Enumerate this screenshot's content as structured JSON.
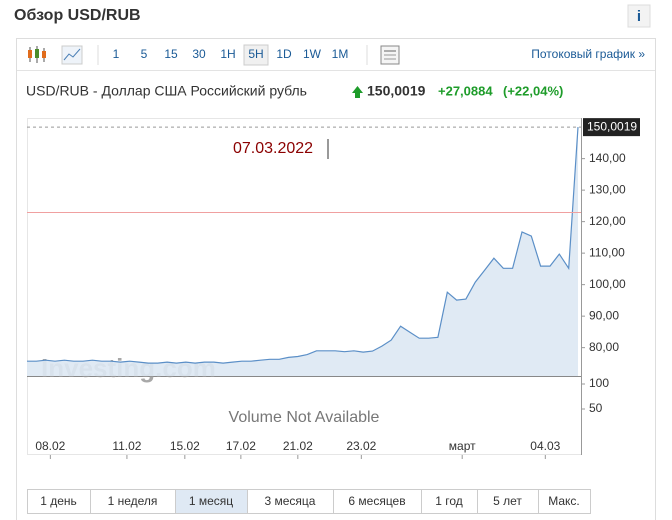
{
  "header": {
    "title": "Обзор USD/RUB",
    "info": "i"
  },
  "toolbar": {
    "intervals": [
      "1",
      "5",
      "15",
      "30",
      "1H",
      "5H",
      "1D",
      "1W",
      "1M"
    ],
    "selected_index": 5,
    "streaming_link": "Потоковый график »"
  },
  "quote": {
    "name": "USD/RUB - Доллар США Российский рубль",
    "price": "150,0019",
    "change": "+27,0884",
    "change_percent": "(+22,04%)"
  },
  "chart_data": {
    "type": "line",
    "color": "#5b8fc7",
    "values": [
      75.7,
      75.7,
      76.0,
      75.7,
      76.0,
      75.7,
      75.7,
      76.0,
      75.7,
      75.7,
      75.4,
      75.7,
      75.4,
      75.1,
      75.1,
      75.4,
      75.1,
      75.4,
      75.1,
      75.4,
      75.4,
      75.1,
      75.4,
      75.7,
      75.7,
      76.0,
      76.3,
      76.3,
      76.9,
      77.2,
      77.8,
      79.0,
      79.0,
      79.0,
      78.7,
      79.0,
      78.6,
      78.9,
      80.5,
      82.4,
      86.8,
      84.9,
      83.0,
      83.0,
      83.3,
      97.6,
      95.1,
      95.4,
      100.8,
      104.6,
      108.4,
      105.2,
      105.2,
      116.7,
      115.4,
      105.9,
      105.9,
      109.7,
      105.2,
      150.0019
    ],
    "xlim": [
      0,
      59
    ],
    "xticks": [
      {
        "value": 2.5,
        "label": "08.02"
      },
      {
        "value": 10.7,
        "label": "11.02"
      },
      {
        "value": 16.9,
        "label": "15.02"
      },
      {
        "value": 22.9,
        "label": "17.02"
      },
      {
        "value": 29,
        "label": "21.02"
      },
      {
        "value": 35.8,
        "label": "23.02"
      },
      {
        "value": 46.6,
        "label": "март"
      },
      {
        "value": 55.5,
        "label": "04.03"
      }
    ],
    "ylim": [
      71,
      152.9
    ],
    "yticks": [
      {
        "value": 80,
        "label": "80,00"
      },
      {
        "value": 90,
        "label": "90,00"
      },
      {
        "value": 100,
        "label": "100,00"
      },
      {
        "value": 110,
        "label": "110,00"
      },
      {
        "value": 120,
        "label": "120,00"
      },
      {
        "value": 130,
        "label": "130,00"
      },
      {
        "value": 140,
        "label": "140,00"
      }
    ],
    "last_value": {
      "value": 150.0019,
      "label": "150,0019"
    },
    "reference_line": 122.9,
    "cursor_date": "07.03.2022",
    "watermark": "Investing.com",
    "volume": {
      "note": "Volume Not Available",
      "ylim": [
        0,
        116
      ],
      "yticks": [
        50,
        100
      ]
    }
  },
  "range_buttons": {
    "labels": [
      "1 день",
      "1 неделя",
      "1 месяц",
      "3 месяца",
      "6 месяцев",
      "1 год",
      "5 лет",
      "Макс."
    ],
    "selected_index": 2
  }
}
